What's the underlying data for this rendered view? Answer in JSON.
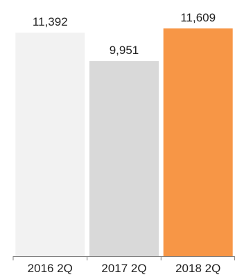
{
  "chart_data": {
    "type": "bar",
    "categories": [
      "2016 2Q",
      "2017 2Q",
      "2018 2Q"
    ],
    "values": [
      11392,
      9951,
      11609
    ],
    "value_labels": [
      "11,392",
      "9,951",
      "11,609"
    ],
    "bar_colors": [
      "#f2f2f2",
      "#d9d9d9",
      "#f79646"
    ],
    "axis_color": "#7f7f7f",
    "grid": false,
    "legend": "none",
    "ylim": [
      0,
      12000
    ]
  }
}
